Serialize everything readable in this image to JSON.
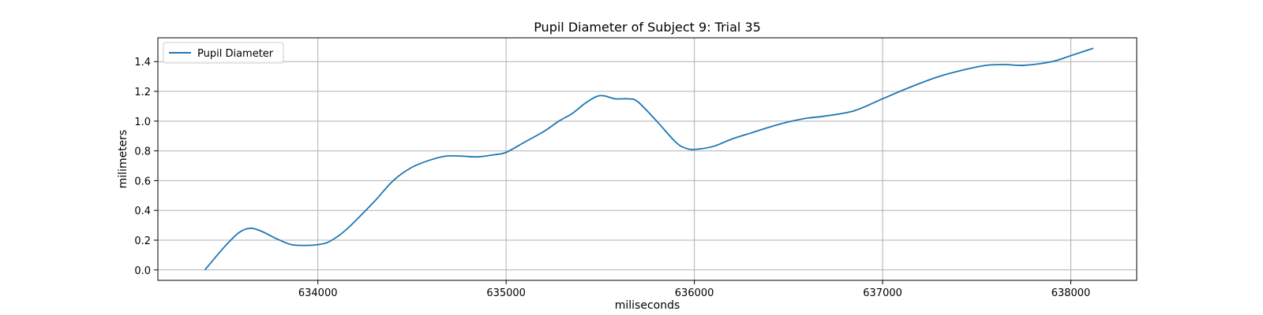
{
  "chart_data": {
    "type": "line",
    "title": "Pupil Diameter of Subject 9: Trial 35",
    "xlabel": "miliseconds",
    "ylabel": "milimeters",
    "xlim": [
      633150,
      638350
    ],
    "ylim": [
      -0.07,
      1.56
    ],
    "xticks": [
      634000,
      635000,
      636000,
      637000,
      638000
    ],
    "yticks": [
      0.0,
      0.2,
      0.4,
      0.6,
      0.8,
      1.0,
      1.2,
      1.4
    ],
    "ytick_labels": [
      "0.0",
      "0.2",
      "0.4",
      "0.6",
      "0.8",
      "1.0",
      "1.2",
      "1.4"
    ],
    "grid": true,
    "legend_position": "top-left",
    "series": [
      {
        "name": "Pupil Diameter",
        "color": "#1f77b4",
        "x": [
          633400,
          633500,
          633580,
          633640,
          633700,
          633780,
          633860,
          633940,
          634000,
          634060,
          634150,
          634300,
          634400,
          634500,
          634600,
          634680,
          634760,
          634850,
          634940,
          635000,
          635100,
          635200,
          635280,
          635350,
          635420,
          635480,
          635520,
          635580,
          635650,
          635700,
          635800,
          635900,
          635950,
          636000,
          636100,
          636200,
          636300,
          636400,
          636500,
          636600,
          636700,
          636850,
          637000,
          637150,
          637300,
          637450,
          637550,
          637650,
          637750,
          637900,
          638000,
          638120
        ],
        "y": [
          0.0,
          0.15,
          0.25,
          0.28,
          0.26,
          0.21,
          0.17,
          0.165,
          0.17,
          0.19,
          0.27,
          0.46,
          0.6,
          0.69,
          0.74,
          0.765,
          0.765,
          0.76,
          0.775,
          0.79,
          0.86,
          0.93,
          1.0,
          1.05,
          1.12,
          1.165,
          1.17,
          1.15,
          1.15,
          1.13,
          1.0,
          0.86,
          0.82,
          0.81,
          0.83,
          0.88,
          0.92,
          0.96,
          0.995,
          1.02,
          1.035,
          1.07,
          1.15,
          1.23,
          1.3,
          1.35,
          1.375,
          1.38,
          1.375,
          1.4,
          1.44,
          1.49
        ]
      }
    ]
  }
}
